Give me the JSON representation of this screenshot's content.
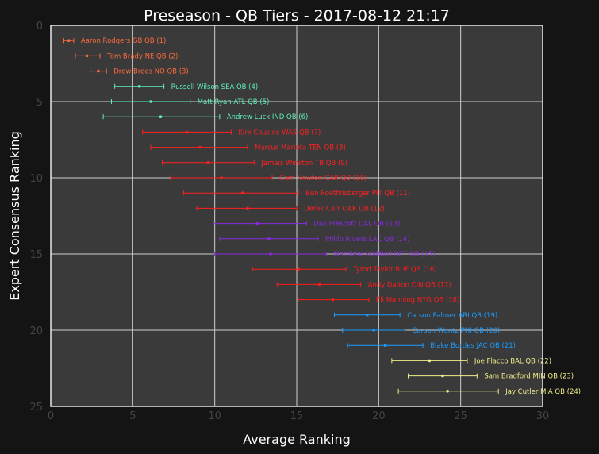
{
  "chart_data": {
    "type": "scatter",
    "title": "Preseason - QB Tiers - 2017-08-12 21:17",
    "xlabel": "Average Ranking",
    "ylabel": "Expert Consensus Ranking",
    "xlim": [
      0,
      30
    ],
    "ylim": [
      25,
      0
    ],
    "xticks": [
      "0",
      "5",
      "10",
      "15",
      "20",
      "25",
      "30"
    ],
    "yticks": [
      "0",
      "5",
      "10",
      "15",
      "20",
      "25"
    ],
    "grid": true,
    "colors": {
      "page_bg": "#141414",
      "plot_bg": "#3a3a3a",
      "axis_frame": "#e8e8e8",
      "grid": "#cfcfcf",
      "tick_text": "#444444",
      "title_text": "#ffffff",
      "tier_colors": [
        "#ff6a3d",
        "#5ff0b8",
        "#ff2020",
        "#8a2be2",
        "#ff1a1a",
        "#1a9cff",
        "#f0f08a"
      ]
    },
    "players": [
      {
        "label": "Aaron Rodgers GB  QB (1)",
        "rank": 1,
        "avg": 1.1,
        "lo": 0.8,
        "hi": 1.4,
        "tier": 0
      },
      {
        "label": "Tom Brady NE  QB (2)",
        "rank": 2,
        "avg": 2.2,
        "lo": 1.5,
        "hi": 3.0,
        "tier": 0
      },
      {
        "label": "Drew Brees NO  QB (3)",
        "rank": 3,
        "avg": 2.9,
        "lo": 2.4,
        "hi": 3.4,
        "tier": 0
      },
      {
        "label": "Russell Wilson SEA  QB (4)",
        "rank": 4,
        "avg": 5.4,
        "lo": 3.9,
        "hi": 6.9,
        "tier": 1
      },
      {
        "label": "Matt Ryan ATL  QB (5)",
        "rank": 5,
        "avg": 6.1,
        "lo": 3.7,
        "hi": 8.5,
        "tier": 1
      },
      {
        "label": "Andrew Luck IND  QB (6)",
        "rank": 6,
        "avg": 6.7,
        "lo": 3.2,
        "hi": 10.3,
        "tier": 1
      },
      {
        "label": "Kirk Cousins WAS  QB (7)",
        "rank": 7,
        "avg": 8.3,
        "lo": 5.6,
        "hi": 11.0,
        "tier": 2
      },
      {
        "label": "Marcus Mariota TEN  QB (8)",
        "rank": 8,
        "avg": 9.1,
        "lo": 6.1,
        "hi": 12.0,
        "tier": 2
      },
      {
        "label": "Jameis Winston TB  QB (9)",
        "rank": 9,
        "avg": 9.6,
        "lo": 6.8,
        "hi": 12.4,
        "tier": 2
      },
      {
        "label": "Cam Newton CAR  QB (10)",
        "rank": 10,
        "avg": 10.4,
        "lo": 7.3,
        "hi": 13.5,
        "tier": 2
      },
      {
        "label": "Ben Roethlisberger PIT  QB (11)",
        "rank": 11,
        "avg": 11.7,
        "lo": 8.1,
        "hi": 15.1,
        "tier": 2
      },
      {
        "label": "Derek Carr OAK  QB (12)",
        "rank": 12,
        "avg": 12.0,
        "lo": 8.9,
        "hi": 15.0,
        "tier": 2
      },
      {
        "label": "Dak Prescott DAL  QB (13)",
        "rank": 13,
        "avg": 12.6,
        "lo": 9.9,
        "hi": 15.6,
        "tier": 3
      },
      {
        "label": "Philip Rivers LAC  QB (14)",
        "rank": 14,
        "avg": 13.3,
        "lo": 10.3,
        "hi": 16.3,
        "tier": 3
      },
      {
        "label": "Matthew Stafford DET  QB (15)",
        "rank": 15,
        "avg": 13.4,
        "lo": 10.0,
        "hi": 16.8,
        "tier": 3
      },
      {
        "label": "Tyrod Taylor BUF  QB (16)",
        "rank": 16,
        "avg": 15.1,
        "lo": 12.3,
        "hi": 18.0,
        "tier": 4
      },
      {
        "label": "Andy Dalton CIN  QB (17)",
        "rank": 17,
        "avg": 16.4,
        "lo": 13.8,
        "hi": 18.9,
        "tier": 4
      },
      {
        "label": "Eli Manning NYG  QB (18)",
        "rank": 18,
        "avg": 17.2,
        "lo": 15.1,
        "hi": 19.4,
        "tier": 4
      },
      {
        "label": "Carson Palmer ARI  QB (19)",
        "rank": 19,
        "avg": 19.3,
        "lo": 17.3,
        "hi": 21.3,
        "tier": 5
      },
      {
        "label": "Carson Wentz PHI  QB (20)",
        "rank": 20,
        "avg": 19.7,
        "lo": 17.8,
        "hi": 21.6,
        "tier": 5
      },
      {
        "label": "Blake Bortles JAC  QB (21)",
        "rank": 21,
        "avg": 20.4,
        "lo": 18.1,
        "hi": 22.7,
        "tier": 5
      },
      {
        "label": "Joe Flacco BAL  QB (22)",
        "rank": 22,
        "avg": 23.1,
        "lo": 20.8,
        "hi": 25.4,
        "tier": 6
      },
      {
        "label": "Sam Bradford MIN  QB (23)",
        "rank": 23,
        "avg": 23.9,
        "lo": 21.8,
        "hi": 26.0,
        "tier": 6
      },
      {
        "label": "Jay Cutler MIA  QB (24)",
        "rank": 24,
        "avg": 24.2,
        "lo": 21.2,
        "hi": 27.3,
        "tier": 6
      }
    ]
  }
}
